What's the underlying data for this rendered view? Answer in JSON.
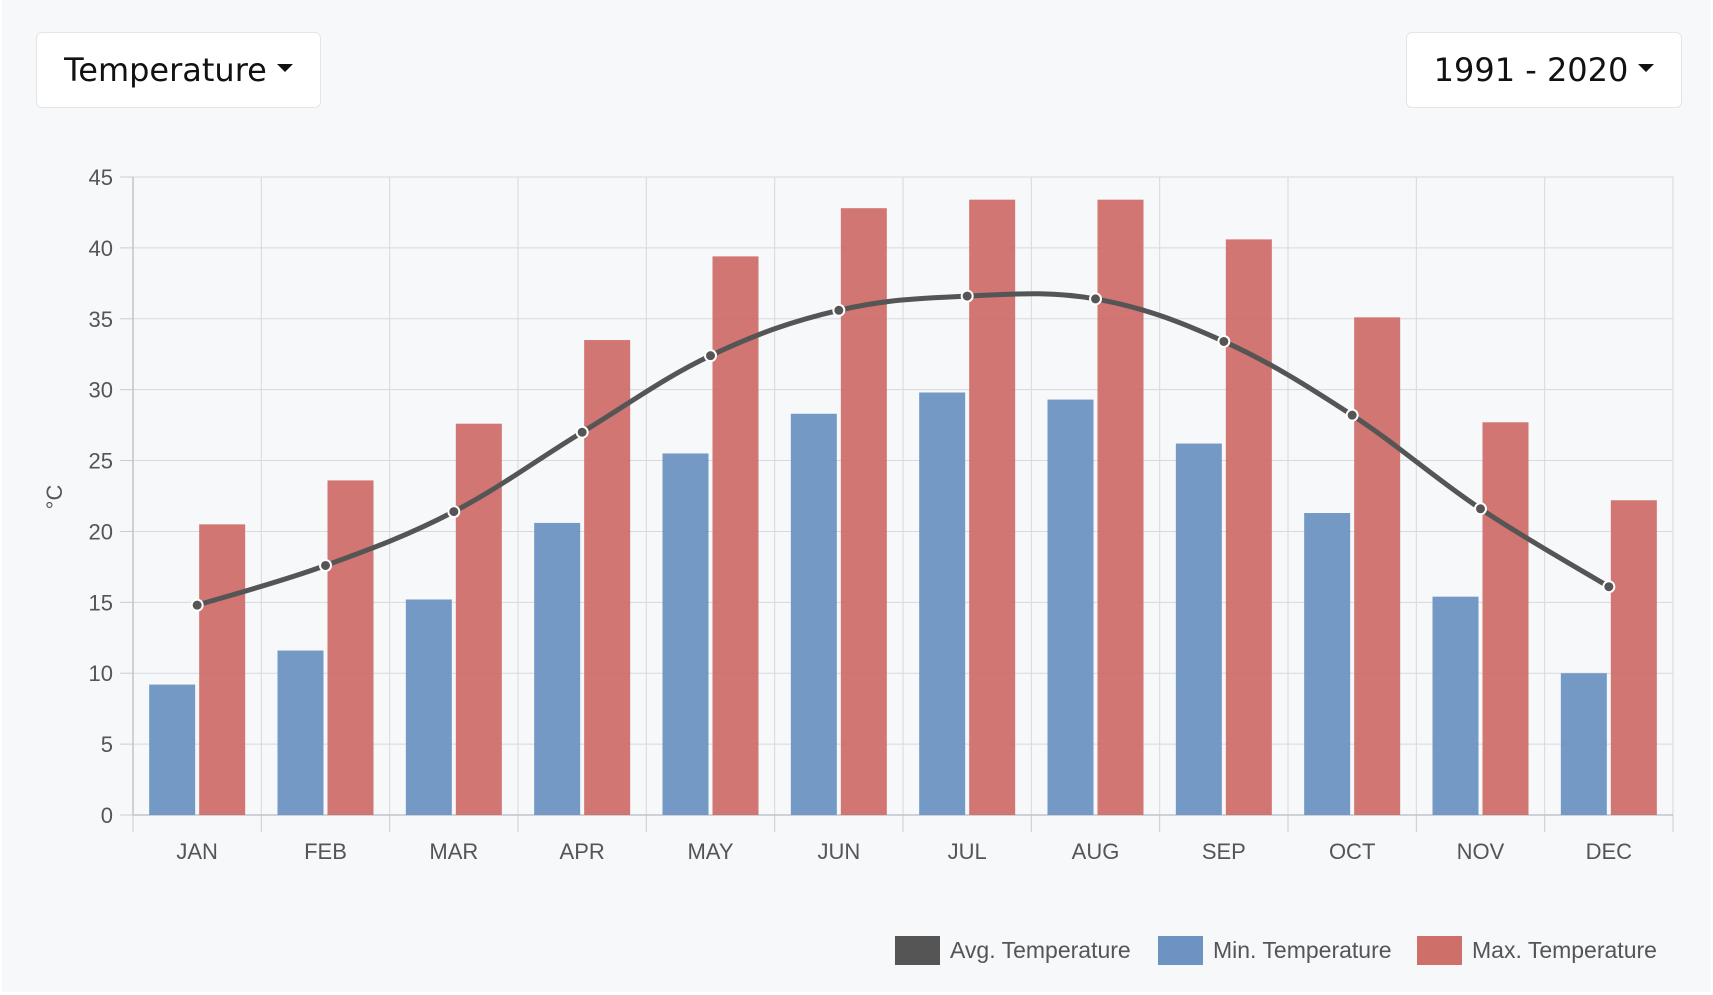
{
  "controls": {
    "metric_label": "Temperature",
    "period_label": "1991 - 2020"
  },
  "chart_data": {
    "type": "bar",
    "ylabel": "°C",
    "xlabel": "",
    "ylim": [
      0,
      45
    ],
    "yticks": [
      0,
      5,
      10,
      15,
      20,
      25,
      30,
      35,
      40,
      45
    ],
    "grid": true,
    "legend_position": "bottom-right",
    "categories": [
      "JAN",
      "FEB",
      "MAR",
      "APR",
      "MAY",
      "JUN",
      "JUL",
      "AUG",
      "SEP",
      "OCT",
      "NOV",
      "DEC"
    ],
    "series": [
      {
        "name": "Avg. Temperature",
        "type": "line",
        "color": "#555555",
        "values": [
          14.8,
          17.6,
          21.4,
          27.0,
          32.4,
          35.6,
          36.6,
          36.4,
          33.4,
          28.2,
          21.6,
          16.1
        ]
      },
      {
        "name": "Min. Temperature",
        "type": "bar",
        "color": "#6d93c2",
        "values": [
          9.2,
          11.6,
          15.2,
          20.6,
          25.5,
          28.3,
          29.8,
          29.3,
          26.2,
          21.3,
          15.4,
          10.0
        ]
      },
      {
        "name": "Max. Temperature",
        "type": "bar",
        "color": "#cf6f6a",
        "values": [
          20.5,
          23.6,
          27.6,
          33.5,
          39.4,
          42.8,
          43.4,
          43.4,
          40.6,
          35.1,
          27.7,
          22.2
        ]
      }
    ]
  }
}
